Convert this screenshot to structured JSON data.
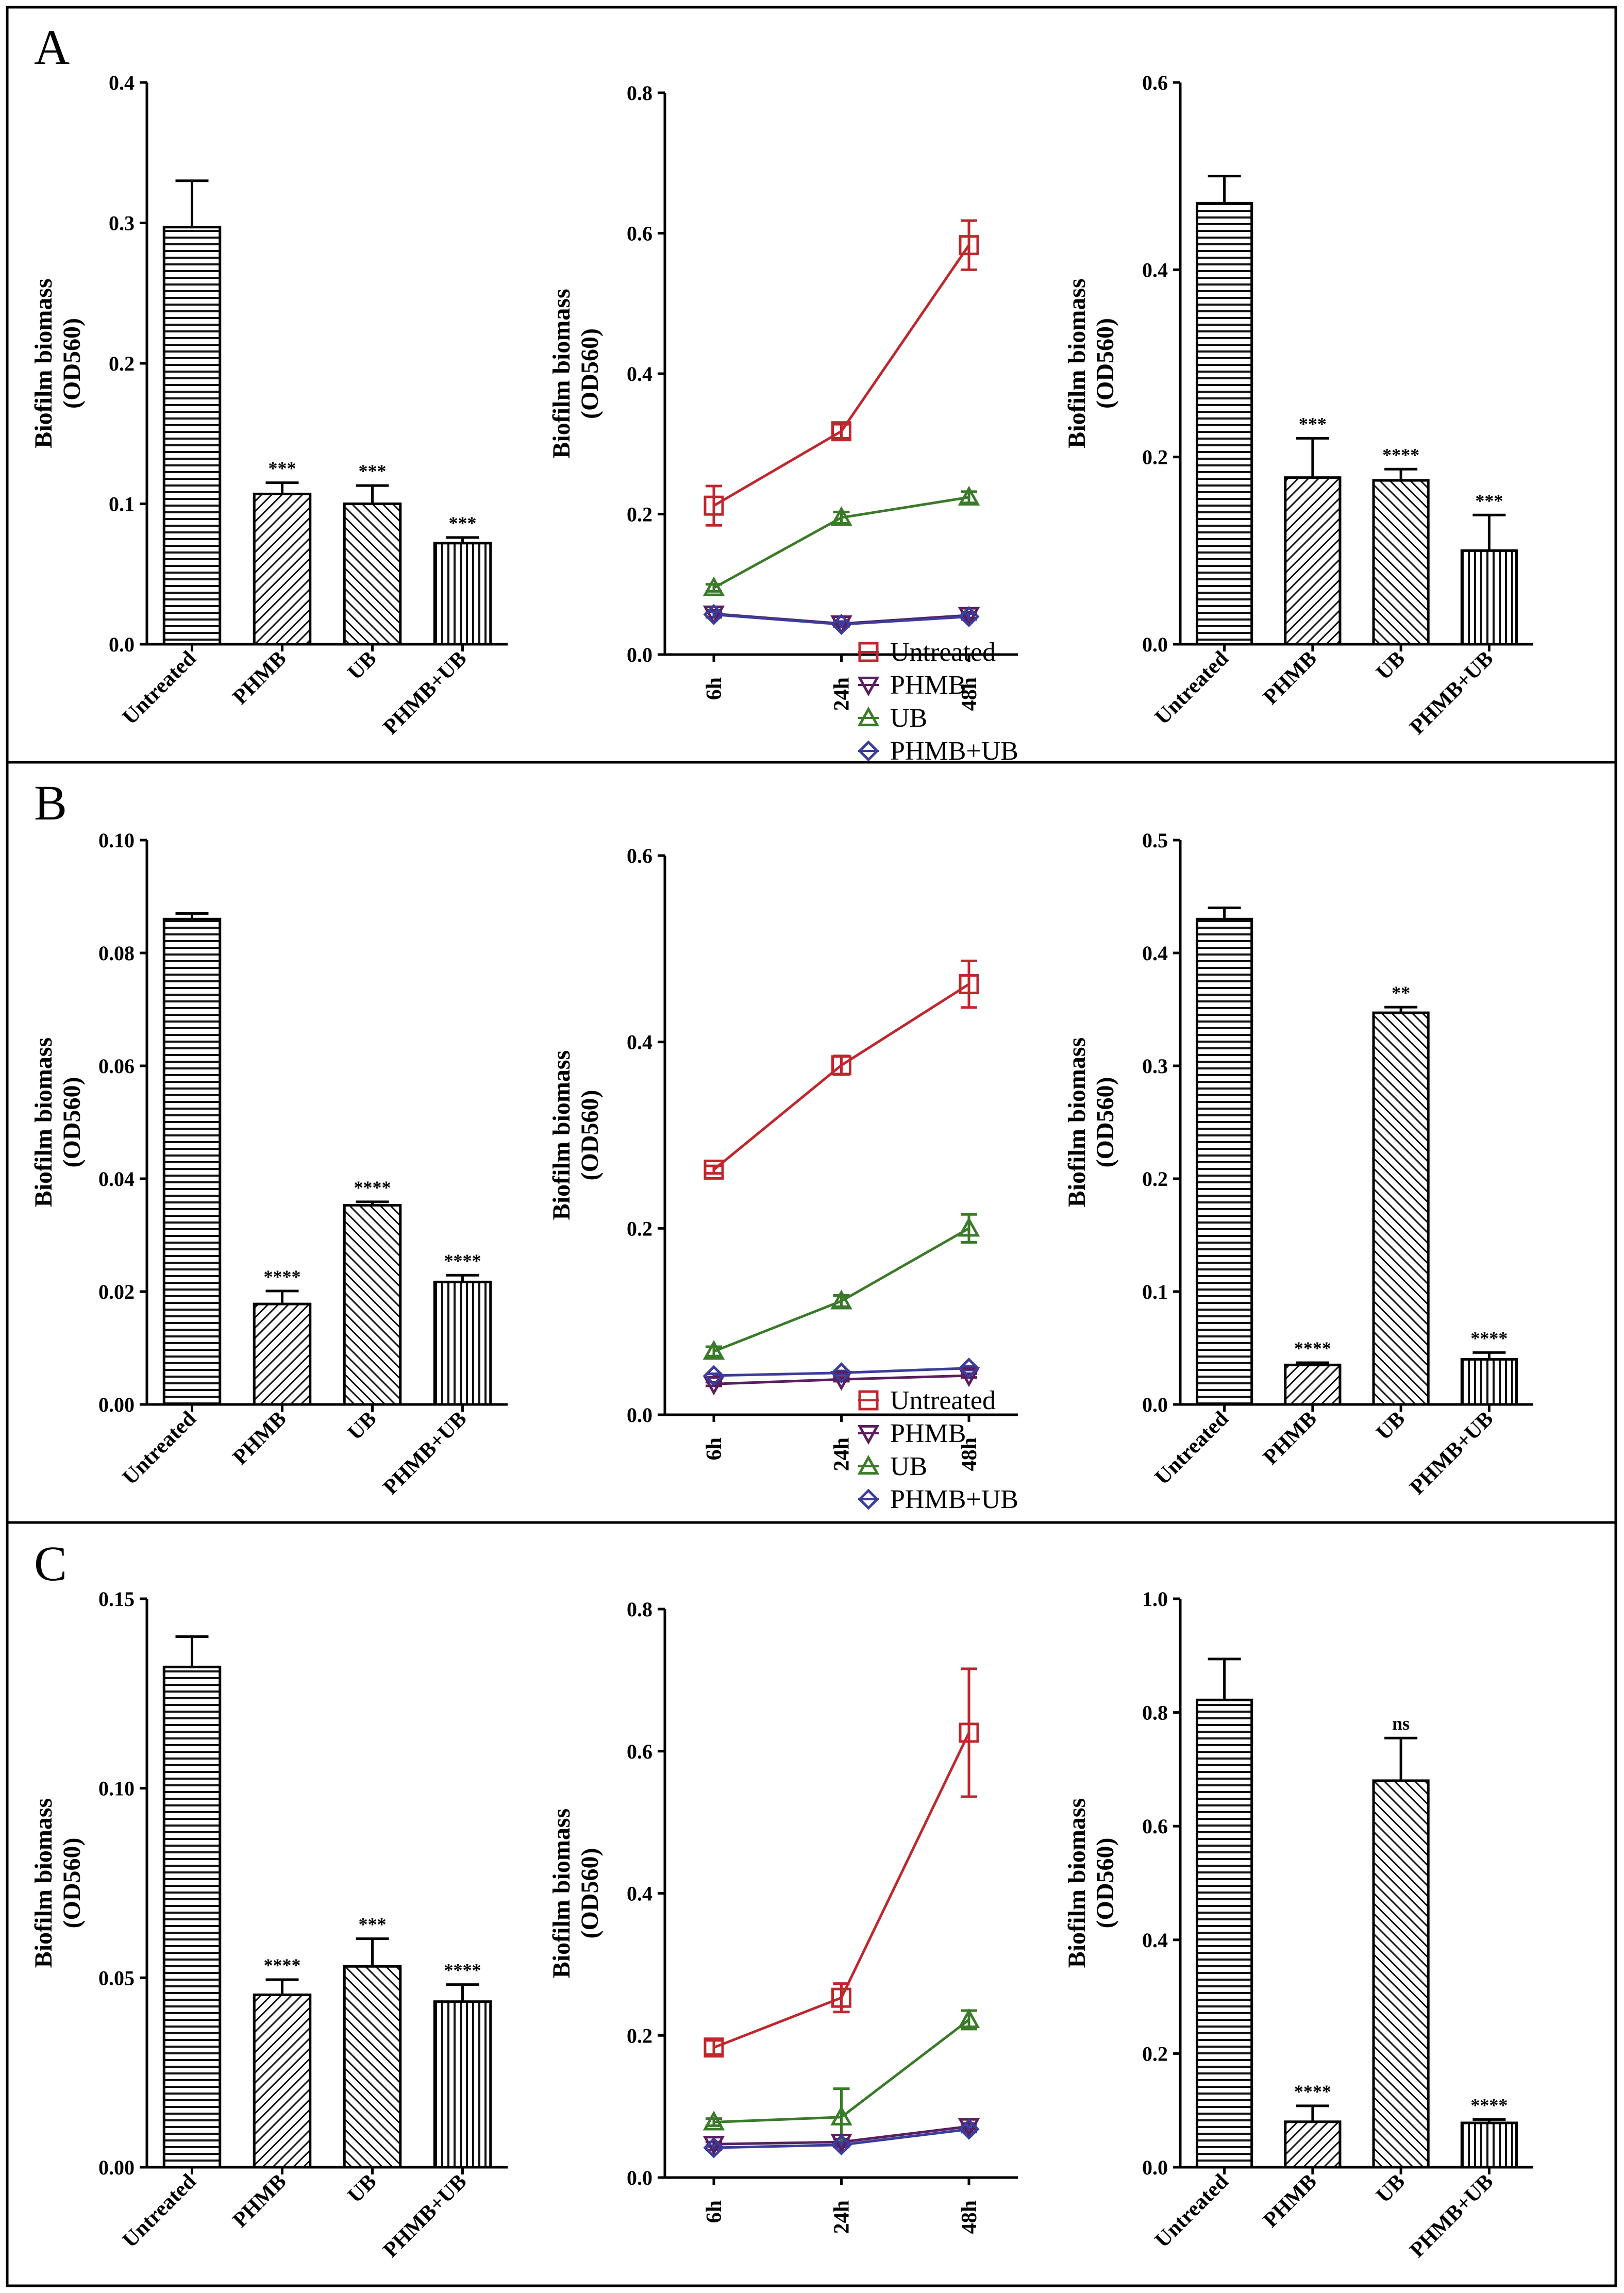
{
  "figure": {
    "panels": [
      {
        "letter": "A",
        "charts": [
          {
            "type": "bar",
            "title": "",
            "xlabel": "",
            "ylabel": "Biofilm biomass",
            "ylabel_unit": "(OD560)",
            "ylim": [
              0,
              0.4
            ],
            "yticks": [
              0.0,
              0.1,
              0.2,
              0.3,
              0.4
            ],
            "ytick_labels": [
              "0.0",
              "0.1",
              "0.2",
              "0.3",
              "0.4"
            ],
            "categories": [
              "Untreated",
              "PHMB",
              "UB",
              "PHMB+UB"
            ],
            "values": [
              0.297,
              0.107,
              0.1,
              0.072
            ],
            "errors": [
              0.033,
              0.008,
              0.013,
              0.004
            ],
            "significance": [
              "",
              "***",
              "***",
              "***"
            ],
            "patterns": [
              "hlines",
              "diag",
              "diag-rev",
              "vlines"
            ]
          },
          {
            "type": "line",
            "title": "",
            "xlabel": "",
            "ylabel": "Biofilm biomass",
            "ylabel_unit": "(OD560)",
            "ylim": [
              0,
              0.8
            ],
            "yticks": [
              0.0,
              0.2,
              0.4,
              0.6,
              0.8
            ],
            "ytick_labels": [
              "0.0",
              "0.2",
              "0.4",
              "0.6",
              "0.8"
            ],
            "x": [
              "6h",
              "24h",
              "48h"
            ],
            "series": [
              {
                "name": "Untreated",
                "color": "#c0262d",
                "marker": "square",
                "values": [
                  0.212,
                  0.318,
                  0.583
                ],
                "errors": [
                  0.028,
                  0.01,
                  0.035
                ]
              },
              {
                "name": "PHMB",
                "color": "#5a1e5e",
                "marker": "triangle-down",
                "values": [
                  0.058,
                  0.044,
                  0.056
                ],
                "errors": [
                  0.005,
                  0.003,
                  0.004
                ]
              },
              {
                "name": "UB",
                "color": "#3b7a2a",
                "marker": "triangle-up",
                "values": [
                  0.095,
                  0.195,
                  0.224
                ],
                "errors": [
                  0.005,
                  0.008,
                  0.008
                ]
              },
              {
                "name": "PHMB+UB",
                "color": "#3b3c9b",
                "marker": "diamond",
                "values": [
                  0.057,
                  0.043,
                  0.054
                ],
                "errors": [
                  0.004,
                  0.003,
                  0.004
                ]
              }
            ]
          },
          {
            "type": "bar",
            "title": "",
            "xlabel": "",
            "ylabel": "Biofilm biomass",
            "ylabel_unit": "(OD560)",
            "ylim": [
              0,
              0.6
            ],
            "yticks": [
              0.0,
              0.2,
              0.4,
              0.6
            ],
            "ytick_labels": [
              "0.0",
              "0.2",
              "0.4",
              "0.6"
            ],
            "categories": [
              "Untreated",
              "PHMB",
              "UB",
              "PHMB+UB"
            ],
            "values": [
              0.471,
              0.178,
              0.175,
              0.1
            ],
            "errors": [
              0.029,
              0.042,
              0.012,
              0.038
            ],
            "significance": [
              "",
              "***",
              "****",
              "***"
            ],
            "patterns": [
              "hlines",
              "diag",
              "diag-rev",
              "vlines"
            ]
          }
        ]
      },
      {
        "letter": "B",
        "charts": [
          {
            "type": "bar",
            "title": "",
            "xlabel": "",
            "ylabel": "Biofilm biomass",
            "ylabel_unit": "(OD560)",
            "ylim": [
              0,
              0.1
            ],
            "yticks": [
              0.0,
              0.02,
              0.04,
              0.06,
              0.08,
              0.1
            ],
            "ytick_labels": [
              "0.00",
              "0.02",
              "0.04",
              "0.06",
              "0.08",
              "0.10"
            ],
            "categories": [
              "Untreated",
              "PHMB",
              "UB",
              "PHMB+UB"
            ],
            "values": [
              0.086,
              0.0178,
              0.0353,
              0.0217
            ],
            "errors": [
              0.001,
              0.0023,
              0.0006,
              0.0012
            ],
            "significance": [
              "",
              "****",
              "****",
              "****"
            ],
            "patterns": [
              "hlines",
              "diag",
              "diag-rev",
              "vlines"
            ]
          },
          {
            "type": "line",
            "title": "",
            "xlabel": "",
            "ylabel": "Biofilm biomass",
            "ylabel_unit": "(OD560)",
            "ylim": [
              0,
              0.6
            ],
            "yticks": [
              0.0,
              0.2,
              0.4,
              0.6
            ],
            "ytick_labels": [
              "0.0",
              "0.2",
              "0.4",
              "0.6"
            ],
            "x": [
              "6h",
              "24h",
              "48h"
            ],
            "series": [
              {
                "name": "Untreated",
                "color": "#c0262d",
                "marker": "square",
                "values": [
                  0.263,
                  0.375,
                  0.462
                ],
                "errors": [
                  0.004,
                  0.01,
                  0.025
                ]
              },
              {
                "name": "PHMB",
                "color": "#5a1e5e",
                "marker": "triangle-down",
                "values": [
                  0.033,
                  0.038,
                  0.042
                ],
                "errors": [
                  0.002,
                  0.002,
                  0.002
                ]
              },
              {
                "name": "UB",
                "color": "#3b7a2a",
                "marker": "triangle-up",
                "values": [
                  0.068,
                  0.122,
                  0.2
                ],
                "errors": [
                  0.005,
                  0.006,
                  0.015
                ]
              },
              {
                "name": "PHMB+UB",
                "color": "#3b3c9b",
                "marker": "diamond",
                "values": [
                  0.042,
                  0.045,
                  0.05
                ],
                "errors": [
                  0.002,
                  0.002,
                  0.002
                ]
              }
            ]
          },
          {
            "type": "bar",
            "title": "",
            "xlabel": "",
            "ylabel": "Biofilm biomass",
            "ylabel_unit": "(OD560)",
            "ylim": [
              0,
              0.5
            ],
            "yticks": [
              0.0,
              0.1,
              0.2,
              0.3,
              0.4,
              0.5
            ],
            "ytick_labels": [
              "0.0",
              "0.1",
              "0.2",
              "0.3",
              "0.4",
              "0.5"
            ],
            "categories": [
              "Untreated",
              "PHMB",
              "UB",
              "PHMB+UB"
            ],
            "values": [
              0.43,
              0.035,
              0.347,
              0.04
            ],
            "errors": [
              0.01,
              0.002,
              0.005,
              0.006
            ],
            "significance": [
              "",
              "****",
              "**",
              "****"
            ],
            "patterns": [
              "hlines",
              "diag",
              "diag-rev",
              "vlines"
            ]
          }
        ]
      },
      {
        "letter": "C",
        "charts": [
          {
            "type": "bar",
            "title": "",
            "xlabel": "",
            "ylabel": "Biofilm biomass",
            "ylabel_unit": "(OD560)",
            "ylim": [
              0,
              0.15
            ],
            "yticks": [
              0.0,
              0.05,
              0.1,
              0.15
            ],
            "ytick_labels": [
              "0.00",
              "0.05",
              "0.10",
              "0.15"
            ],
            "categories": [
              "Untreated",
              "PHMB",
              "UB",
              "PHMB+UB"
            ],
            "values": [
              0.132,
              0.0455,
              0.053,
              0.0437
            ],
            "errors": [
              0.008,
              0.004,
              0.0073,
              0.0045
            ],
            "significance": [
              "",
              "****",
              "***",
              "****"
            ],
            "patterns": [
              "hlines",
              "diag",
              "diag-rev",
              "vlines"
            ]
          },
          {
            "type": "line",
            "title": "",
            "xlabel": "",
            "ylabel": "Biofilm biomass",
            "ylabel_unit": "(OD560)",
            "ylim": [
              0,
              0.8
            ],
            "yticks": [
              0.0,
              0.2,
              0.4,
              0.6,
              0.8
            ],
            "ytick_labels": [
              "0.0",
              "0.2",
              "0.4",
              "0.6",
              "0.8"
            ],
            "x": [
              "6h",
              "24h",
              "48h"
            ],
            "series": [
              {
                "name": "Untreated",
                "color": "#c0262d",
                "marker": "square",
                "values": [
                  0.183,
                  0.253,
                  0.626
                ],
                "errors": [
                  0.01,
                  0.02,
                  0.09
                ]
              },
              {
                "name": "PHMB",
                "color": "#5a1e5e",
                "marker": "triangle-down",
                "values": [
                  0.047,
                  0.05,
                  0.072
                ],
                "errors": [
                  0.003,
                  0.004,
                  0.004
                ]
              },
              {
                "name": "UB",
                "color": "#3b7a2a",
                "marker": "triangle-up",
                "values": [
                  0.078,
                  0.085,
                  0.222
                ],
                "errors": [
                  0.005,
                  0.04,
                  0.013
                ]
              },
              {
                "name": "PHMB+UB",
                "color": "#3b3c9b",
                "marker": "diamond",
                "values": [
                  0.042,
                  0.046,
                  0.068
                ],
                "errors": [
                  0.003,
                  0.003,
                  0.004
                ]
              }
            ]
          },
          {
            "type": "bar",
            "title": "",
            "xlabel": "",
            "ylabel": "Biofilm biomass",
            "ylabel_unit": "(OD560)",
            "ylim": [
              0,
              1.0
            ],
            "yticks": [
              0.0,
              0.2,
              0.4,
              0.6,
              0.8,
              1.0
            ],
            "ytick_labels": [
              "0.0",
              "0.2",
              "0.4",
              "0.6",
              "0.8",
              "1.0"
            ],
            "categories": [
              "Untreated",
              "PHMB",
              "UB",
              "PHMB+UB"
            ],
            "values": [
              0.822,
              0.08,
              0.68,
              0.078
            ],
            "errors": [
              0.072,
              0.028,
              0.075,
              0.006
            ],
            "significance": [
              "",
              "****",
              "ns",
              "****"
            ],
            "patterns": [
              "hlines",
              "diag",
              "diag-rev",
              "vlines"
            ]
          }
        ]
      }
    ]
  },
  "chart_data": [
    {
      "panel": "A",
      "type": "bar",
      "categories": [
        "Untreated",
        "PHMB",
        "UB",
        "PHMB+UB"
      ],
      "values": [
        0.297,
        0.107,
        0.1,
        0.072
      ],
      "ylabel": "Biofilm biomass (OD560)",
      "ylim": [
        0,
        0.4
      ]
    },
    {
      "panel": "A",
      "type": "line",
      "x": [
        "6h",
        "24h",
        "48h"
      ],
      "series": [
        {
          "name": "Untreated",
          "values": [
            0.212,
            0.318,
            0.583
          ]
        },
        {
          "name": "PHMB",
          "values": [
            0.058,
            0.044,
            0.056
          ]
        },
        {
          "name": "UB",
          "values": [
            0.095,
            0.195,
            0.224
          ]
        },
        {
          "name": "PHMB+UB",
          "values": [
            0.057,
            0.043,
            0.054
          ]
        }
      ],
      "ylabel": "Biofilm biomass (OD560)",
      "ylim": [
        0,
        0.8
      ]
    },
    {
      "panel": "A",
      "type": "bar",
      "categories": [
        "Untreated",
        "PHMB",
        "UB",
        "PHMB+UB"
      ],
      "values": [
        0.471,
        0.178,
        0.175,
        0.1
      ],
      "ylabel": "Biofilm biomass (OD560)",
      "ylim": [
        0,
        0.6
      ]
    },
    {
      "panel": "B",
      "type": "bar",
      "categories": [
        "Untreated",
        "PHMB",
        "UB",
        "PHMB+UB"
      ],
      "values": [
        0.086,
        0.0178,
        0.0353,
        0.0217
      ],
      "ylabel": "Biofilm biomass (OD560)",
      "ylim": [
        0,
        0.1
      ]
    },
    {
      "panel": "B",
      "type": "line",
      "x": [
        "6h",
        "24h",
        "48h"
      ],
      "series": [
        {
          "name": "Untreated",
          "values": [
            0.263,
            0.375,
            0.462
          ]
        },
        {
          "name": "PHMB",
          "values": [
            0.033,
            0.038,
            0.042
          ]
        },
        {
          "name": "UB",
          "values": [
            0.068,
            0.122,
            0.2
          ]
        },
        {
          "name": "PHMB+UB",
          "values": [
            0.042,
            0.045,
            0.05
          ]
        }
      ],
      "ylabel": "Biofilm biomass (OD560)",
      "ylim": [
        0,
        0.6
      ]
    },
    {
      "panel": "B",
      "type": "bar",
      "categories": [
        "Untreated",
        "PHMB",
        "UB",
        "PHMB+UB"
      ],
      "values": [
        0.43,
        0.035,
        0.347,
        0.04
      ],
      "ylabel": "Biofilm biomass (OD560)",
      "ylim": [
        0,
        0.5
      ]
    },
    {
      "panel": "C",
      "type": "bar",
      "categories": [
        "Untreated",
        "PHMB",
        "UB",
        "PHMB+UB"
      ],
      "values": [
        0.132,
        0.0455,
        0.053,
        0.0437
      ],
      "ylabel": "Biofilm biomass (OD560)",
      "ylim": [
        0,
        0.15
      ]
    },
    {
      "panel": "C",
      "type": "line",
      "x": [
        "6h",
        "24h",
        "48h"
      ],
      "series": [
        {
          "name": "Untreated",
          "values": [
            0.183,
            0.253,
            0.626
          ]
        },
        {
          "name": "PHMB",
          "values": [
            0.047,
            0.05,
            0.072
          ]
        },
        {
          "name": "UB",
          "values": [
            0.078,
            0.085,
            0.222
          ]
        },
        {
          "name": "PHMB+UB",
          "values": [
            0.042,
            0.046,
            0.068
          ]
        }
      ],
      "ylabel": "Biofilm biomass (OD560)",
      "ylim": [
        0,
        0.8
      ]
    },
    {
      "panel": "C",
      "type": "bar",
      "categories": [
        "Untreated",
        "PHMB",
        "UB",
        "PHMB+UB"
      ],
      "values": [
        0.822,
        0.08,
        0.68,
        0.078
      ],
      "ylabel": "Biofilm biomass (OD560)",
      "ylim": [
        0,
        1.0
      ]
    }
  ]
}
